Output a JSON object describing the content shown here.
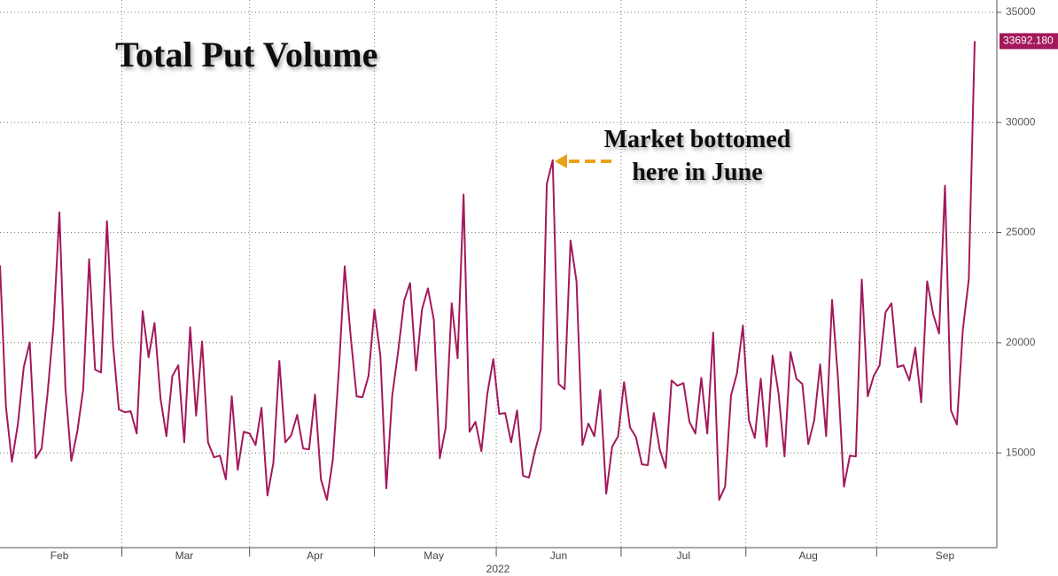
{
  "chart_data": {
    "type": "line",
    "title": "Total Put Volume",
    "annotation": [
      "Market bottomed",
      "here in June"
    ],
    "xlabel": "2022",
    "categories": [
      null,
      null,
      null,
      null,
      null,
      null,
      null,
      null,
      null,
      null,
      "Feb",
      null,
      null,
      null,
      null,
      null,
      null,
      null,
      null,
      null,
      null,
      null,
      null,
      null,
      null,
      null,
      null,
      null,
      null,
      null,
      null,
      "Mar",
      null,
      null,
      null,
      null,
      null,
      null,
      null,
      null,
      null,
      null,
      null,
      null,
      null,
      null,
      null,
      null,
      null,
      null,
      null,
      null,
      null,
      "Apr",
      null,
      null,
      null,
      null,
      null,
      null,
      null,
      null,
      null,
      null,
      null,
      null,
      null,
      null,
      null,
      null,
      null,
      null,
      null,
      "May",
      null,
      null,
      null,
      null,
      null,
      null,
      null,
      null,
      null,
      null,
      null,
      null,
      null,
      null,
      null,
      null,
      null,
      null,
      null,
      null,
      "Jun",
      null,
      null,
      null,
      null,
      null,
      null,
      null,
      null,
      null,
      null,
      null,
      null,
      null,
      null,
      null,
      null,
      null,
      null,
      null,
      null,
      "Jul",
      null,
      null,
      null,
      null,
      null,
      null,
      null,
      null,
      null,
      null,
      null,
      null,
      null,
      null,
      null,
      null,
      null,
      null,
      null,
      null,
      "Aug",
      null,
      null,
      null,
      null,
      null,
      null,
      null,
      null,
      null,
      null,
      null,
      null,
      null,
      null,
      null,
      null,
      null,
      null,
      null,
      null,
      null,
      null,
      "Sep",
      null,
      null,
      null,
      null,
      null
    ],
    "series": [
      {
        "name": "Total Put Volume",
        "color": "#a3195b",
        "values": [
          23514,
          17090,
          14600,
          16290,
          18900,
          20020,
          14760,
          15200,
          17690,
          20780,
          25920,
          17970,
          14640,
          15960,
          17890,
          23800,
          18780,
          18650,
          25520,
          19980,
          16970,
          16850,
          16890,
          15880,
          21430,
          19340,
          20900,
          17490,
          15760,
          18490,
          18980,
          15480,
          20700,
          16690,
          20060,
          15480,
          14800,
          14880,
          13800,
          17570,
          14240,
          15960,
          15880,
          15360,
          17050,
          13070,
          14560,
          19180,
          15480,
          15800,
          16730,
          15200,
          15160,
          17650,
          13800,
          12870,
          14680,
          18700,
          23470,
          20300,
          17570,
          17530,
          18490,
          21510,
          19420,
          13390,
          17610,
          19620,
          21910,
          22710,
          18740,
          21510,
          22470,
          21030,
          14760,
          16160,
          21790,
          19300,
          26730,
          15960,
          16410,
          15080,
          17690,
          19260,
          16770,
          16810,
          15480,
          16930,
          13960,
          13880,
          15080,
          16080,
          27210,
          28290,
          18130,
          17890,
          24640,
          22790,
          15360,
          16330,
          15760,
          17850,
          13150,
          15280,
          15760,
          18210,
          16160,
          15720,
          14480,
          14440,
          16810,
          15160,
          14320,
          18290,
          18050,
          18170,
          16410,
          15880,
          18410,
          15880,
          20460,
          12870,
          13470,
          17610,
          18620,
          20780,
          16490,
          15680,
          18370,
          15280,
          19420,
          17690,
          14840,
          19580,
          18370,
          18130,
          15400,
          16490,
          19020,
          15760,
          21950,
          18370,
          13470,
          14880,
          14840,
          22870,
          17570,
          18490,
          18980,
          21390,
          21790,
          18900,
          18980,
          18290,
          19780,
          17290,
          22790,
          21310,
          20420,
          27130,
          16930,
          16290,
          20580,
          22870,
          33692.18
        ],
        "value_labels": [
          null,
          null,
          null,
          null,
          null,
          null,
          null,
          null,
          null,
          null,
          null,
          null,
          null,
          null,
          null,
          null,
          null,
          null,
          null,
          null,
          null,
          null,
          null,
          null,
          null,
          null,
          null,
          null,
          null,
          null,
          null,
          null,
          null,
          null,
          null,
          null,
          null,
          null,
          null,
          null,
          null,
          null,
          null,
          null,
          null,
          null,
          null,
          null,
          null,
          null,
          null,
          null,
          null,
          null,
          null,
          null,
          null,
          null,
          null,
          null,
          null,
          null,
          null,
          null,
          null,
          null,
          null,
          null,
          null,
          null,
          null,
          null,
          null,
          null,
          null,
          null,
          null,
          null,
          null,
          null,
          null,
          null,
          null,
          null,
          null,
          null,
          null,
          null,
          null,
          null,
          null,
          null,
          null,
          null,
          null,
          null,
          null,
          null,
          null,
          null,
          null,
          null,
          null,
          null,
          null,
          null,
          null,
          null,
          null,
          null,
          null,
          null,
          null,
          null,
          null,
          null,
          null,
          null,
          null,
          null,
          null,
          null,
          null,
          null,
          null,
          null,
          null,
          null,
          null,
          null,
          null,
          null,
          null,
          null,
          null,
          null,
          null,
          null,
          null,
          null,
          null,
          null,
          null,
          null,
          null,
          null,
          null,
          null,
          null,
          null,
          null,
          null,
          null,
          null,
          null,
          null,
          null,
          null,
          null,
          null,
          null,
          null,
          null,
          null,
          "33692.180"
        ]
      }
    ],
    "ylim": [
      10700,
      35560
    ],
    "yticks": [
      15000,
      20000,
      25000,
      30000,
      35000
    ],
    "grid": true
  }
}
